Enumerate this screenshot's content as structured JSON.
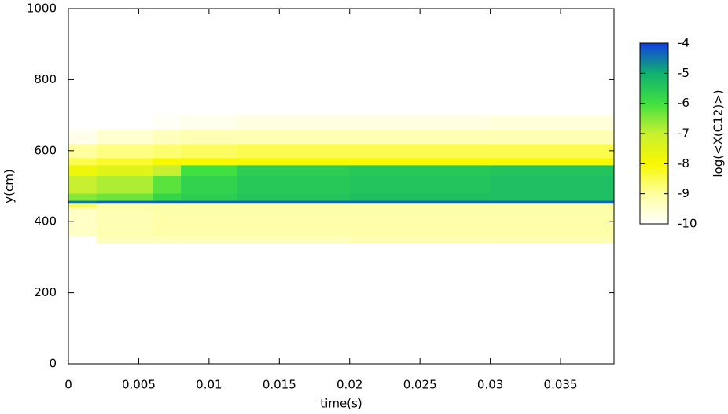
{
  "chart_data": {
    "type": "heatmap",
    "xlabel": "time(s)",
    "ylabel": "y(cm)",
    "colorbar_label": "log(<X(C12)>)",
    "x_bins": [
      0,
      0.002,
      0.006,
      0.008,
      0.012,
      0.02,
      0.03,
      0.0388
    ],
    "y_bins": [
      340,
      360,
      440,
      452,
      460,
      480,
      530,
      560,
      580,
      620,
      660,
      700
    ],
    "z": [
      [
        null,
        -9.3,
        -9.3,
        -9.3,
        -9.3,
        -9.2,
        -9.2
      ],
      [
        -9.4,
        -9.2,
        -9.1,
        -9.1,
        -9.1,
        -9.1,
        -9.1
      ],
      [
        -8.5,
        -9,
        -9,
        -9,
        -9,
        -9,
        -9
      ],
      [
        -4.5,
        -4.3,
        -4.3,
        -4.3,
        -4.3,
        -4.3,
        -4.3
      ],
      [
        -6.5,
        -6.3,
        -5.8,
        -5.6,
        -5.4,
        -5.3,
        -5.3
      ],
      [
        -7,
        -6.8,
        -6.2,
        -5.7,
        -5.5,
        -5.4,
        -5.3
      ],
      [
        -7.8,
        -7.5,
        -7,
        -6,
        -5.6,
        -5.5,
        -5.4
      ],
      [
        -8.5,
        -8.3,
        -8,
        -8,
        -8,
        -8,
        -8
      ],
      [
        -9,
        -8.8,
        -8.7,
        -8.6,
        -8.5,
        -8.5,
        -8.5
      ],
      [
        -9.8,
        -9.5,
        -9.3,
        -9.2,
        -9.2,
        -9.2,
        -9.2
      ],
      [
        null,
        null,
        -9.9,
        -9.8,
        -9.7,
        -9.7,
        -9.6
      ]
    ],
    "xlim": [
      0,
      0.0388
    ],
    "xticks": [
      0,
      0.005,
      0.01,
      0.015,
      0.02,
      0.025,
      0.03,
      0.035
    ],
    "ylim": [
      0,
      1000
    ],
    "yticks": [
      0,
      200,
      400,
      600,
      800,
      1000
    ],
    "zlim": [
      -10,
      -4
    ],
    "zticks": [
      -10,
      -9,
      -8,
      -7,
      -6,
      -5,
      -4
    ],
    "colormap": [
      "#ffffff",
      "#ffffa0",
      "#f8f800",
      "#c8f030",
      "#40e040",
      "#10b070",
      "#1040e0"
    ]
  }
}
